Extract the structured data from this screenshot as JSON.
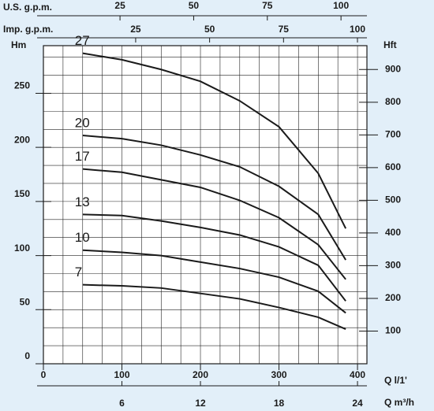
{
  "chart_data": {
    "type": "line",
    "x": [
      50,
      100,
      150,
      200,
      250,
      300,
      350,
      385
    ],
    "xlim": [
      0,
      412
    ],
    "xticks": [
      0,
      100,
      200,
      300,
      400
    ],
    "xlabel": "Q l/1'",
    "x_axes": [
      {
        "label": "Q m³/h",
        "xlim": [
          0,
          24.72
        ],
        "xticks": [
          6,
          12,
          18,
          24
        ]
      },
      {
        "label": "U.S. g.p.m.",
        "xlim": [
          -1,
          108.8
        ],
        "xticks": [
          25,
          50,
          75,
          100
        ]
      },
      {
        "label": "Imp. g.p.m.",
        "xlim": [
          -6.2,
          103.2
        ],
        "xticks": [
          25,
          50,
          75,
          100
        ]
      }
    ],
    "ylabel": "Hm",
    "ylim": [
      0,
      294
    ],
    "yticks": [
      0,
      50,
      100,
      150,
      200,
      250
    ],
    "y2label": "Hft",
    "y2lim": [
      0,
      973
    ],
    "y2ticks": [
      100,
      200,
      300,
      400,
      500,
      600,
      700,
      800,
      900
    ],
    "grid": true,
    "series": [
      {
        "name": "27",
        "color": "#1a1a1a",
        "values": [
          287,
          281,
          272,
          261,
          243,
          219,
          176,
          125
        ]
      },
      {
        "name": "20",
        "color": "#1a1a1a",
        "values": [
          211,
          208,
          202,
          193,
          182,
          164,
          138,
          96
        ]
      },
      {
        "name": "17",
        "color": "#1a1a1a",
        "values": [
          180,
          177,
          170,
          163,
          151,
          135,
          110,
          78
        ]
      },
      {
        "name": "13",
        "color": "#1a1a1a",
        "values": [
          138,
          137,
          132,
          126,
          119,
          108,
          91,
          58
        ]
      },
      {
        "name": "10",
        "color": "#1a1a1a",
        "values": [
          105,
          103,
          100,
          94,
          88,
          80,
          67,
          47
        ]
      },
      {
        "name": "7",
        "color": "#1a1a1a",
        "values": [
          73,
          72,
          70,
          65,
          60,
          52,
          43,
          32
        ]
      }
    ]
  }
}
